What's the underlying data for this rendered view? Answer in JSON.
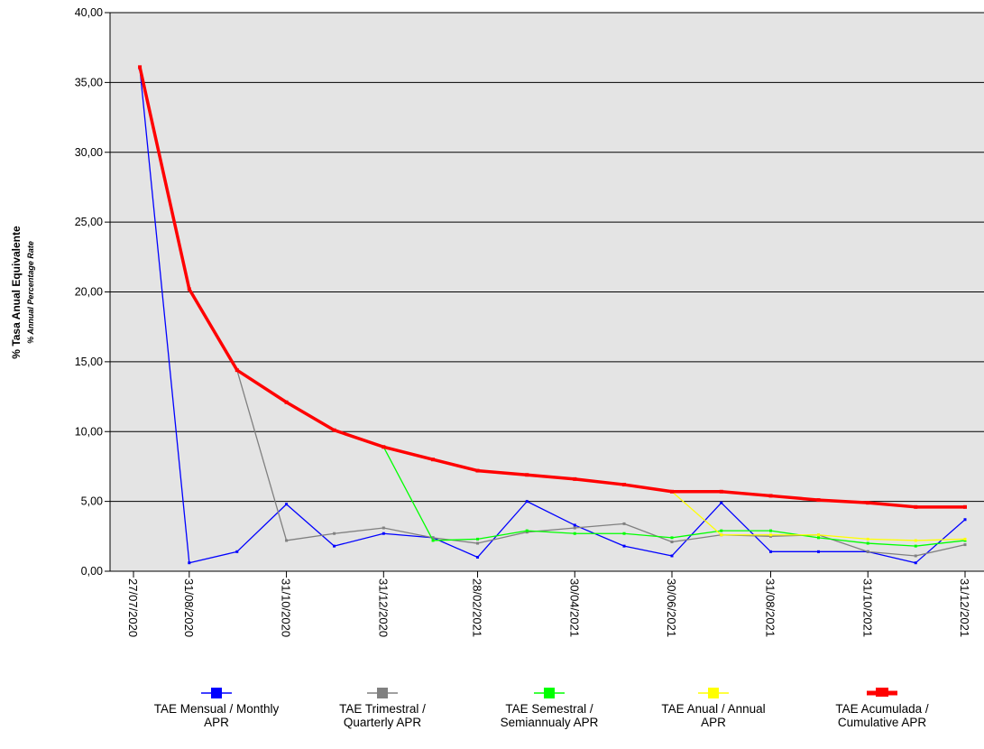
{
  "chart_data": {
    "type": "line",
    "ylabel": "% Tasa Anual Equivalente",
    "ylabel_sub": "% Annual Percentage Rate",
    "ylim": [
      0,
      40
    ],
    "y_ticks": [
      "0,00",
      "5,00",
      "10,00",
      "15,00",
      "20,00",
      "25,00",
      "30,00",
      "35,00",
      "40,00"
    ],
    "x_ticks": [
      "27/07/2020",
      "31/08/2020",
      "31/10/2020",
      "31/12/2020",
      "28/02/2021",
      "30/04/2021",
      "30/06/2021",
      "31/08/2021",
      "31/10/2021",
      "31/12/2021"
    ],
    "x": [
      "31/07/2020",
      "31/08/2020",
      "30/09/2020",
      "31/10/2020",
      "30/11/2020",
      "31/12/2020",
      "31/01/2021",
      "28/02/2021",
      "31/03/2021",
      "30/04/2021",
      "31/05/2021",
      "30/06/2021",
      "31/07/2021",
      "31/08/2021",
      "30/09/2021",
      "31/10/2021",
      "30/11/2021",
      "31/12/2021"
    ],
    "background": "#e4e4e4",
    "grid": "horizontal",
    "legend_position": "bottom",
    "series": [
      {
        "name": "TAE Mensual /   Monthly\nAPR",
        "color": "#0000ff",
        "width": 1.3,
        "marker": 3,
        "values": [
          36.0,
          0.6,
          1.4,
          4.8,
          1.8,
          2.7,
          2.4,
          1.0,
          5.0,
          3.3,
          1.8,
          1.1,
          4.9,
          1.4,
          1.4,
          1.4,
          0.6,
          3.7
        ]
      },
      {
        "name": "TAE Trimestral /\nQuarterly APR",
        "color": "#808080",
        "width": 1.3,
        "marker": 3,
        "values": [
          null,
          null,
          14.4,
          2.2,
          2.7,
          3.1,
          2.4,
          2.0,
          2.8,
          3.1,
          3.4,
          2.1,
          2.6,
          2.5,
          2.6,
          1.4,
          1.1,
          1.9
        ]
      },
      {
        "name": "TAE Semestral /\nSemiannualy APR",
        "color": "#00ff00",
        "width": 1.3,
        "marker": 3,
        "values": [
          null,
          null,
          null,
          null,
          null,
          8.9,
          2.2,
          2.3,
          2.9,
          2.7,
          2.7,
          2.4,
          2.9,
          2.9,
          2.4,
          2.0,
          1.8,
          2.2
        ]
      },
      {
        "name": "TAE Anual / Annual\nAPR",
        "color": "#ffff00",
        "width": 1.3,
        "marker": 3,
        "values": [
          null,
          null,
          null,
          null,
          null,
          null,
          null,
          null,
          null,
          null,
          null,
          5.7,
          2.6,
          2.6,
          2.6,
          2.3,
          2.2,
          2.3
        ]
      },
      {
        "name": "TAE Acumulada /\nCumulative APR",
        "color": "#ff0000",
        "width": 3.5,
        "marker": 4,
        "values": [
          36.1,
          20.2,
          14.4,
          12.1,
          10.1,
          8.9,
          8.0,
          7.2,
          6.9,
          6.6,
          6.2,
          5.7,
          5.7,
          5.4,
          5.1,
          4.9,
          4.6,
          4.6
        ]
      }
    ]
  }
}
